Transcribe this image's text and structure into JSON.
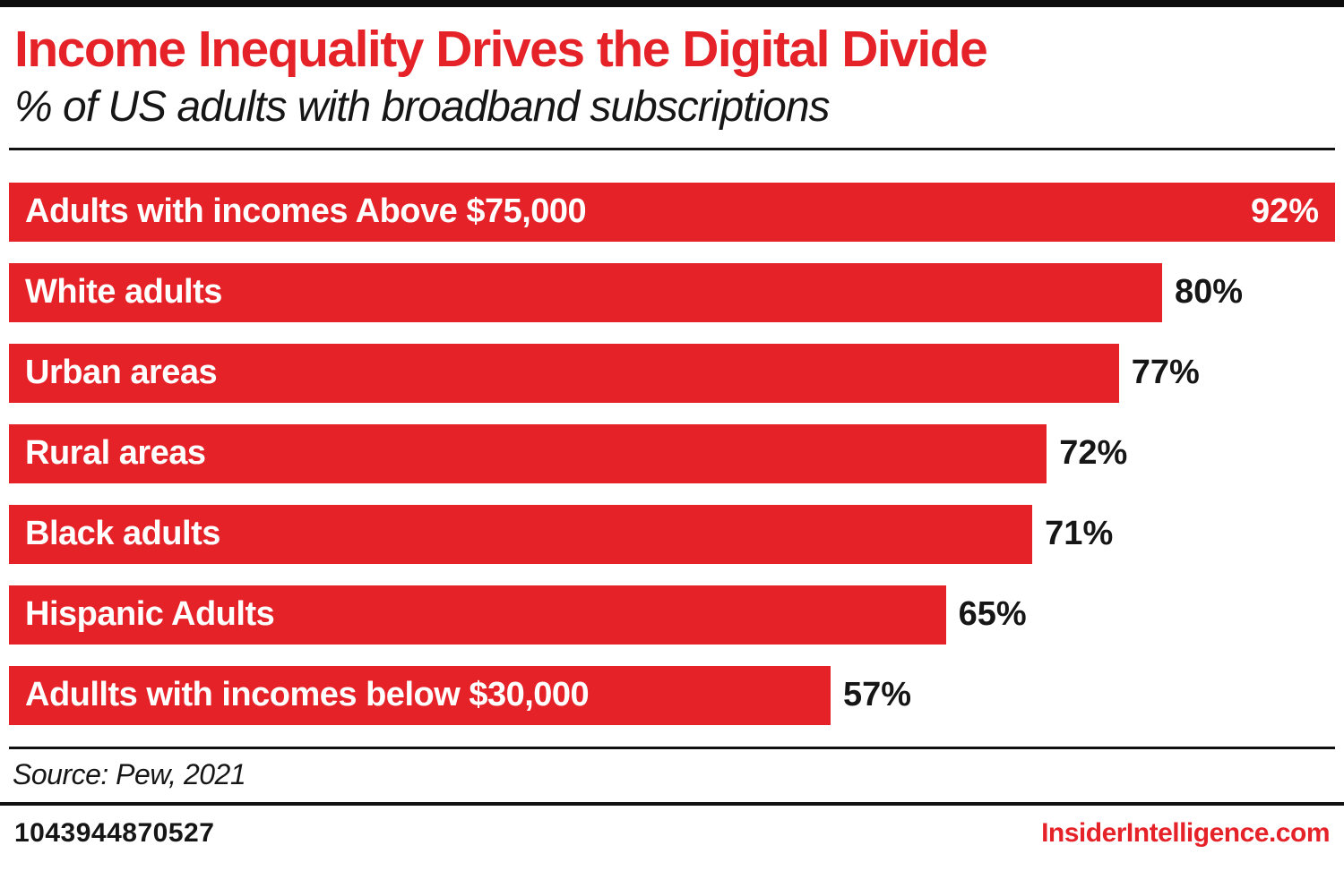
{
  "header": {
    "title": "Income Inequality Drives the Digital Divide",
    "subtitle": "% of US adults with broadband subscriptions"
  },
  "source": "Source: Pew, 2021",
  "footer": {
    "id": "1043944870527",
    "site": "InsiderIntelligence.com"
  },
  "colors": {
    "accent": "#e62229",
    "text": "#161616",
    "bar_label": "#ffffff"
  },
  "chart_data": {
    "type": "bar",
    "orientation": "horizontal",
    "title": "Income Inequality Drives the Digital Divide",
    "subtitle": "% of US adults with broadband subscriptions",
    "unit": "%",
    "xlim": [
      0,
      92
    ],
    "grid": false,
    "legend": "none",
    "categories": [
      "Adults with incomes Above $75,000",
      "White adults",
      "Urban areas",
      "Rural areas",
      "Black adults",
      "Hispanic Adults",
      "Adullts with incomes below $30,000"
    ],
    "values": [
      92,
      80,
      77,
      72,
      71,
      65,
      57
    ],
    "rows": [
      {
        "label": "Adults with incomes Above $75,000",
        "value": 92,
        "display": "92%",
        "value_inside": true
      },
      {
        "label": "White adults",
        "value": 80,
        "display": "80%",
        "value_inside": false
      },
      {
        "label": "Urban areas",
        "value": 77,
        "display": "77%",
        "value_inside": false
      },
      {
        "label": "Rural areas",
        "value": 72,
        "display": "72%",
        "value_inside": false
      },
      {
        "label": "Black adults",
        "value": 71,
        "display": "71%",
        "value_inside": false
      },
      {
        "label": "Hispanic Adults",
        "value": 65,
        "display": "65%",
        "value_inside": false
      },
      {
        "label": "Adullts with incomes below $30,000",
        "value": 57,
        "display": "57%",
        "value_inside": false
      }
    ]
  }
}
